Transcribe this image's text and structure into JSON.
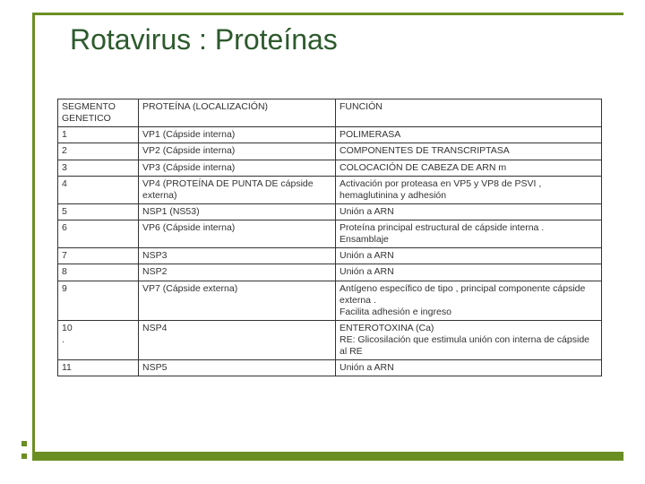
{
  "title": "Rotavirus : Proteínas",
  "colors": {
    "accent": "#6b8e23",
    "title_text": "#2d5a2d",
    "border": "#333333",
    "background": "#ffffff"
  },
  "table": {
    "columns": [
      "SEGMENTO GENETICO",
      "PROTEÍNA (LOCALIZACIÓN)",
      "FUNCIÓN"
    ],
    "rows": [
      [
        "1",
        "VP1 (Cápside interna)",
        "POLIMERASA"
      ],
      [
        "2",
        "VP2 (Cápside interna)",
        "COMPONENTES DE TRANSCRIPTASA"
      ],
      [
        "3",
        "VP3 (Cápside interna)",
        "COLOCACIÓN DE CABEZA DE ARN m"
      ],
      [
        "4",
        "VP4 (PROTEÍNA DE PUNTA DE cápside externa)",
        "Activación por proteasa en VP5 y VP8 de PSVI , hemaglutinina y adhesión"
      ],
      [
        "5",
        "NSP1 (NS53)",
        "Unión a ARN"
      ],
      [
        "6",
        "VP6 (Cápside interna)",
        "Proteína principal estructural de cápside interna .\nEnsamblaje"
      ],
      [
        "7",
        "NSP3",
        "Unión a ARN"
      ],
      [
        "8",
        "NSP2",
        "Unión a ARN"
      ],
      [
        "9",
        "VP7 (Cápside externa)",
        "Antígeno específico de tipo , principal componente cápside externa .\nFacilita adhesión e ingreso"
      ],
      [
        "10\n.",
        "NSP4",
        "ENTEROTOXINA (Ca)\nRE: Glicosilación  que estimula unión con interna de cápside al RE"
      ],
      [
        "11",
        "NSP5",
        "Unión a ARN"
      ]
    ]
  }
}
